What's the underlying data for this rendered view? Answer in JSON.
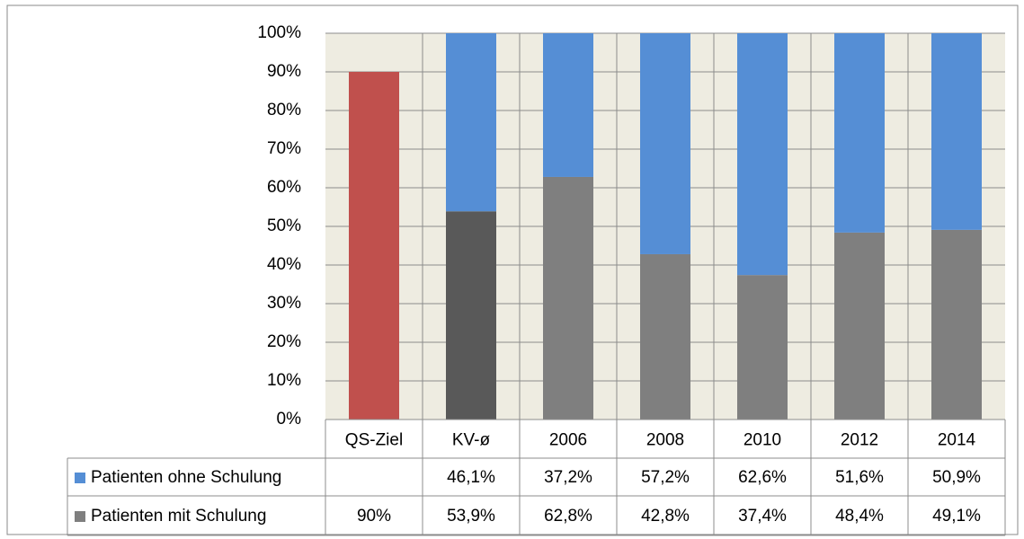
{
  "chart_data": {
    "type": "stacked_bar",
    "categories": [
      "QS-Ziel",
      "KV-ø",
      "2006",
      "2008",
      "2010",
      "2012",
      "2014"
    ],
    "series": [
      {
        "name": "Patienten ohne Schulung",
        "color": "#558ed5",
        "values": [
          null,
          46.1,
          37.2,
          57.2,
          62.6,
          51.6,
          50.9
        ],
        "value_labels": [
          null,
          "46,1%",
          "37,2%",
          "57,2%",
          "62,6%",
          "51,6%",
          "50,9%"
        ]
      },
      {
        "name": "Patienten mit Schulung",
        "color": "#7f7f7f",
        "point_colors": [
          "#c0504d",
          "#595959",
          "#7f7f7f",
          "#7f7f7f",
          "#7f7f7f",
          "#7f7f7f",
          "#7f7f7f"
        ],
        "values": [
          90,
          53.9,
          62.8,
          42.8,
          37.4,
          48.4,
          49.1
        ],
        "value_labels": [
          "90%",
          "53,9%",
          "62,8%",
          "42,8%",
          "37,4%",
          "48,4%",
          "49,1%"
        ]
      }
    ],
    "ylim": [
      0,
      100
    ],
    "yticks": [
      {
        "value": 0,
        "label": "0%"
      },
      {
        "value": 10,
        "label": "10%"
      },
      {
        "value": 20,
        "label": "20%"
      },
      {
        "value": 30,
        "label": "30%"
      },
      {
        "value": 40,
        "label": "40%"
      },
      {
        "value": 50,
        "label": "50%"
      },
      {
        "value": 60,
        "label": "60%"
      },
      {
        "value": 70,
        "label": "70%"
      },
      {
        "value": 80,
        "label": "80%"
      },
      {
        "value": 90,
        "label": "90%"
      },
      {
        "value": 100,
        "label": "100%"
      }
    ],
    "grid": true,
    "data_table": true
  }
}
